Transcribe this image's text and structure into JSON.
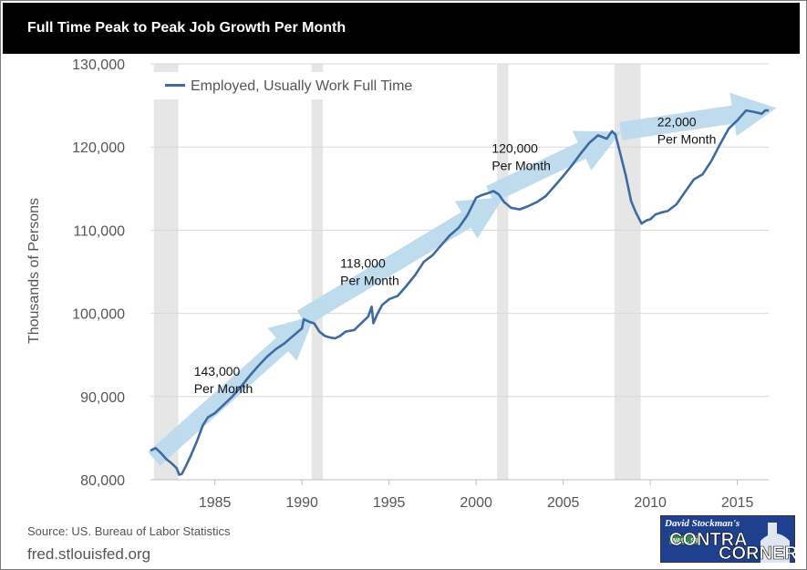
{
  "header": {
    "title": "Full Time Peak to Peak Job Growth Per Month"
  },
  "source": {
    "text": "Source: US. Bureau of Labor Statistics",
    "site": "fred.stlouisfed.org"
  },
  "logo": {
    "line1": "David Stockman's",
    "line2": "CONTRA",
    "line3": "CORNER",
    "sign": "WALL ST"
  },
  "colors": {
    "series": "#3d6b9f",
    "arrow": "#bcdbee",
    "recession": "#e6e6e6",
    "grid": "#d8d8d8",
    "title_bg": "#000000"
  },
  "annotations": [
    {
      "line1": "143,000",
      "line2": "Per Month",
      "x": 1983.8,
      "y": 92500
    },
    {
      "line1": "118,000",
      "line2": "Per Month",
      "x": 1992.2,
      "y": 105500
    },
    {
      "line1": "120,000",
      "line2": "Per Month",
      "x": 2000.9,
      "y": 119300
    },
    {
      "line1": "22,000",
      "line2": "Per Month",
      "x": 2010.4,
      "y": 122500
    }
  ],
  "chart_data": {
    "type": "line",
    "title": "Full Time Peak to Peak Job Growth Per Month",
    "ylabel": "Thousands of Persons",
    "xlabel": "",
    "xlim": [
      1981.3,
      2016.8
    ],
    "ylim": [
      80000,
      130000
    ],
    "xticks": [
      1985,
      1990,
      1995,
      2000,
      2005,
      2010,
      2015
    ],
    "yticks": [
      80000,
      90000,
      100000,
      110000,
      120000,
      130000
    ],
    "ytick_labels": [
      "80,000",
      "90,000",
      "100,000",
      "110,000",
      "120,000",
      "130,000"
    ],
    "grid": true,
    "legend_position": "top-left",
    "recessions": [
      [
        1981.5,
        1982.9
      ],
      [
        1990.55,
        1991.2
      ],
      [
        2001.2,
        2001.85
      ],
      [
        2007.95,
        2009.45
      ]
    ],
    "series": [
      {
        "name": "Employed, Usually Work Full Time",
        "x": [
          1981.3,
          1981.6,
          1981.9,
          1982.2,
          1982.5,
          1982.8,
          1982.95,
          1983.1,
          1983.3,
          1983.6,
          1984.0,
          1984.3,
          1984.6,
          1985.0,
          1985.5,
          1986.0,
          1986.5,
          1987.0,
          1987.5,
          1988.0,
          1988.5,
          1989.0,
          1989.5,
          1990.0,
          1990.1,
          1990.4,
          1990.7,
          1991.0,
          1991.3,
          1991.6,
          1991.9,
          1992.2,
          1992.5,
          1993.0,
          1993.5,
          1993.8,
          1994.0,
          1994.1,
          1994.3,
          1994.6,
          1995.0,
          1995.5,
          1996.0,
          1996.5,
          1997.0,
          1997.5,
          1998.0,
          1998.5,
          1999.0,
          1999.5,
          2000.0,
          2000.3,
          2000.6,
          2001.0,
          2001.3,
          2001.6,
          2002.0,
          2002.5,
          2003.0,
          2003.5,
          2004.0,
          2004.5,
          2005.0,
          2005.5,
          2006.0,
          2006.5,
          2007.0,
          2007.5,
          2007.8,
          2008.0,
          2008.3,
          2008.6,
          2008.9,
          2009.2,
          2009.5,
          2009.8,
          2010.0,
          2010.3,
          2010.6,
          2011.0,
          2011.5,
          2012.0,
          2012.5,
          2013.0,
          2013.5,
          2014.0,
          2014.5,
          2015.0,
          2015.5,
          2016.0,
          2016.4,
          2016.6,
          2016.8
        ],
        "y": [
          83500,
          83800,
          83200,
          82500,
          82000,
          81400,
          80600,
          80700,
          81500,
          82800,
          84800,
          86500,
          87500,
          88000,
          89000,
          90000,
          91200,
          92500,
          93700,
          94800,
          95700,
          96400,
          97300,
          98200,
          99300,
          99000,
          98800,
          97800,
          97300,
          97100,
          97000,
          97300,
          97800,
          98000,
          99000,
          99600,
          100800,
          98800,
          99800,
          101000,
          101700,
          102100,
          103300,
          104600,
          106200,
          107000,
          108200,
          109400,
          110300,
          111800,
          113900,
          114200,
          114400,
          114700,
          114300,
          113400,
          112700,
          112500,
          112900,
          113400,
          114100,
          115300,
          116500,
          117800,
          119200,
          120500,
          121400,
          121000,
          121900,
          121500,
          119000,
          116500,
          113500,
          112000,
          110800,
          111200,
          111300,
          111900,
          112100,
          112300,
          113100,
          114600,
          116100,
          116700,
          118300,
          120300,
          122200,
          123200,
          124400,
          124200,
          124000,
          124400,
          124400
        ]
      }
    ]
  }
}
